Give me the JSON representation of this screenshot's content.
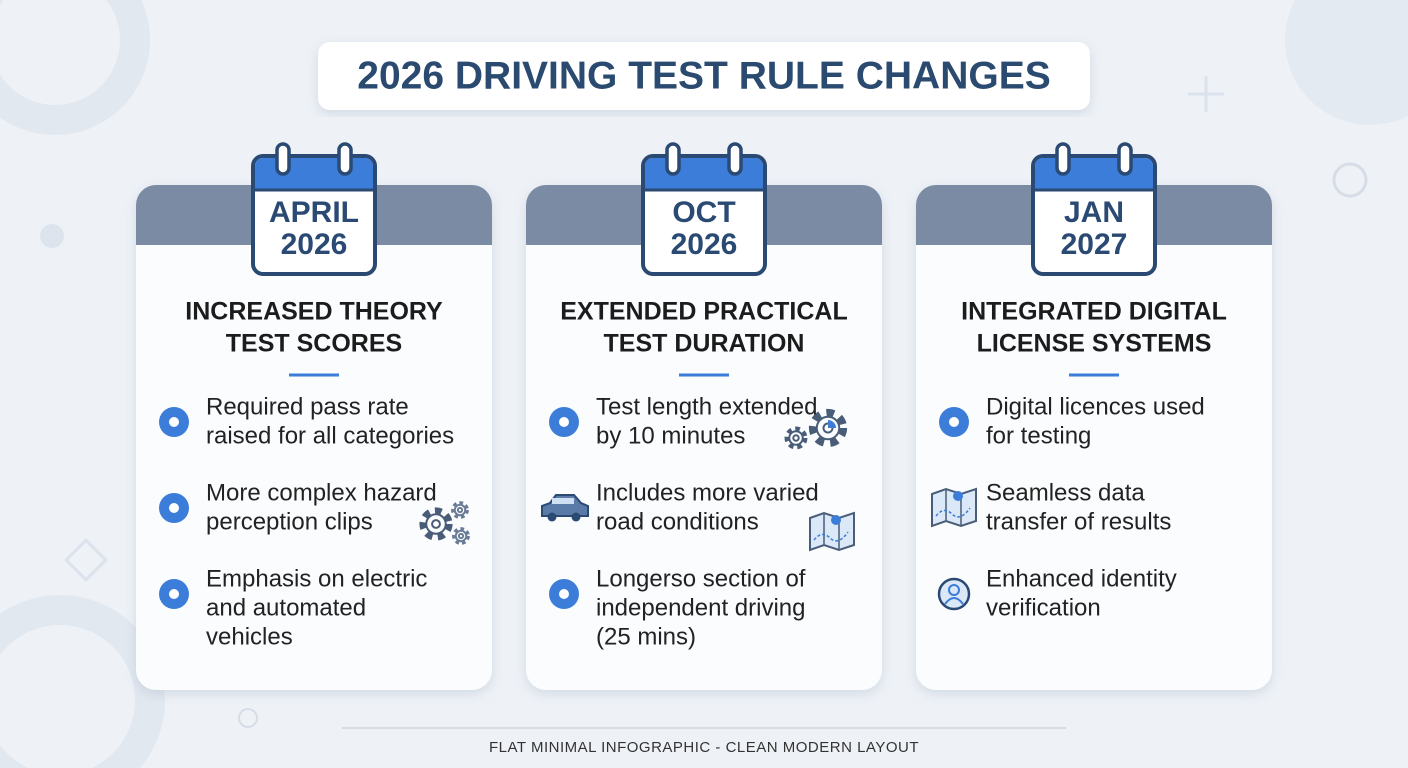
{
  "title": "2026 DRIVING TEST RULE CHANGES",
  "cards": [
    {
      "date": [
        "APRIL",
        "2026"
      ],
      "heading": [
        "INCREASED THEORY",
        "TEST SCORES"
      ],
      "items": [
        [
          "Required pass rate",
          "raised for all categories"
        ],
        [
          "More complex hazard",
          "perception clips"
        ],
        [
          "Emphasis on electric",
          "and automated",
          "vehicles"
        ]
      ]
    },
    {
      "date": [
        "OCT",
        "2026"
      ],
      "heading": [
        "EXTENDED PRACTICAL",
        "TEST DURATION"
      ],
      "items": [
        [
          "Test length extended",
          "by 10 minutes"
        ],
        [
          "Includes more varied",
          "road conditions"
        ],
        [
          "Longerso section of",
          "independent driving",
          "(25 mins)"
        ]
      ]
    },
    {
      "date": [
        "JAN",
        "2027"
      ],
      "heading": [
        "INTEGRATED DIGITAL",
        "LICENSE SYSTEMS"
      ],
      "items": [
        [
          "Digital licences used",
          "for testing"
        ],
        [
          "Seamless data",
          "transfer of results"
        ],
        [
          "Enhanced identity",
          "verification"
        ]
      ]
    }
  ],
  "footer": "FLAT MINIMAL INFOGRAPHIC - CLEAN MODERN LAYOUT"
}
